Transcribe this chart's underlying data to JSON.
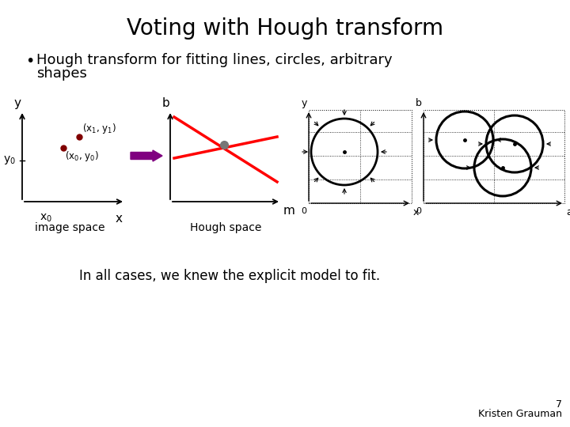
{
  "title": "Voting with Hough transform",
  "bullet_text": "Hough transform for fitting lines, circles, arbitrary",
  "bullet_text2": "shapes",
  "footer_left": "In all cases, we knew the explicit model to fit.",
  "footer_right": "Kristen Grauman",
  "page_number": "7",
  "title_fontsize": 20,
  "bullet_fontsize": 13,
  "footer_fontsize": 12
}
